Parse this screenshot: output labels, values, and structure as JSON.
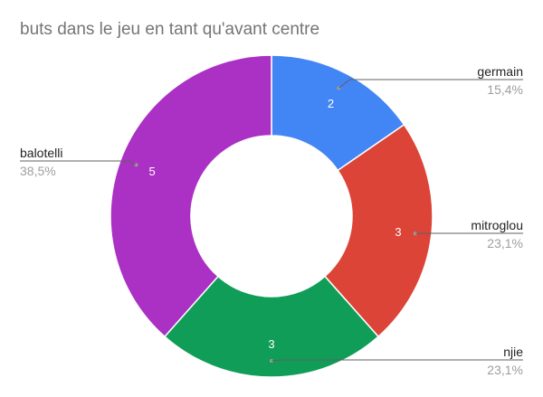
{
  "chart_data": {
    "type": "pie",
    "donut": true,
    "title": "buts dans le jeu en tant qu'avant centre",
    "slices": [
      {
        "label": "germain",
        "value": 2,
        "value_label": "2",
        "percent": "15,4%",
        "color": "#4285F4"
      },
      {
        "label": "mitroglou",
        "value": 3,
        "value_label": "3",
        "percent": "23,1%",
        "color": "#DB4437"
      },
      {
        "label": "njie",
        "value": 3,
        "value_label": "3",
        "percent": "23,1%",
        "color": "#0F9D58"
      },
      {
        "label": "balotelli",
        "value": 5,
        "value_label": "5",
        "percent": "38,5%",
        "color": "#AB30C4"
      }
    ],
    "legend": "labeled-callouts"
  }
}
